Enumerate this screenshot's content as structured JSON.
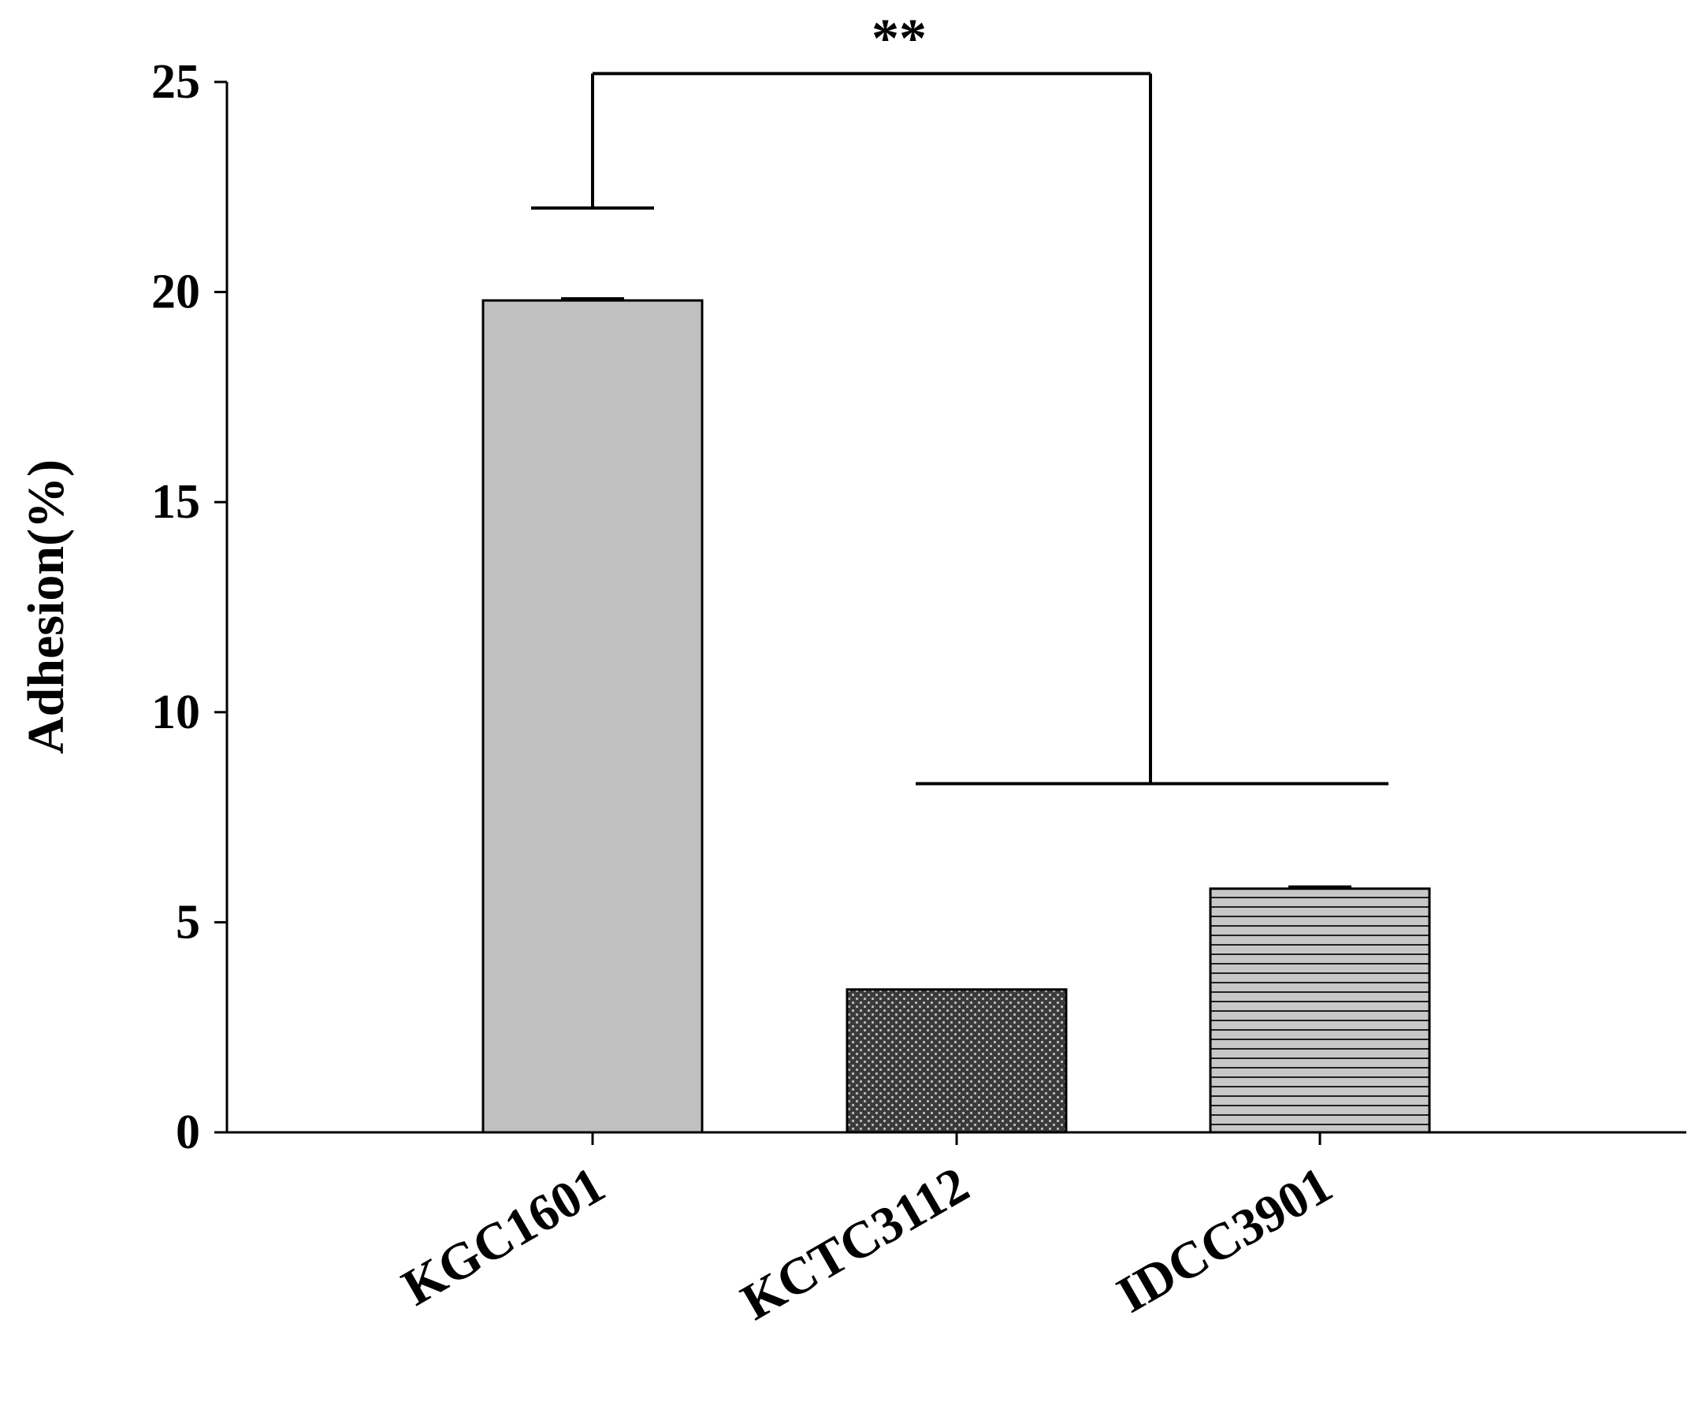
{
  "chart_data": {
    "type": "bar",
    "title": "",
    "xlabel": "",
    "ylabel": "Adhesion(%)",
    "ylim": [
      0,
      25
    ],
    "yticks": [
      0,
      5,
      10,
      15,
      20,
      25
    ],
    "categories": [
      "KGC1601",
      "KCTC3112",
      "IDCC3901"
    ],
    "values": [
      19.8,
      3.4,
      5.8
    ],
    "errors": [
      0.05,
      0.0,
      0.05
    ],
    "bar_fills": [
      "solid-gray",
      "dotted-dark",
      "horizontal-stripes"
    ],
    "significance": {
      "label": "**",
      "left_group": [
        "KGC1601"
      ],
      "right_group": [
        "KCTC3112",
        "IDCC3901"
      ],
      "left_foot_y": 22.0,
      "right_foot_y": 8.3,
      "top_y": 25.2
    },
    "grid": false,
    "legend": "none",
    "colors": {
      "bar_gray": "#c0c0c0",
      "axis": "#000000",
      "dot_dark": "#333333",
      "dot_light": "#bdbdbd",
      "stripe_light": "#c8c8c8",
      "stripe_dark": "#222222"
    }
  }
}
